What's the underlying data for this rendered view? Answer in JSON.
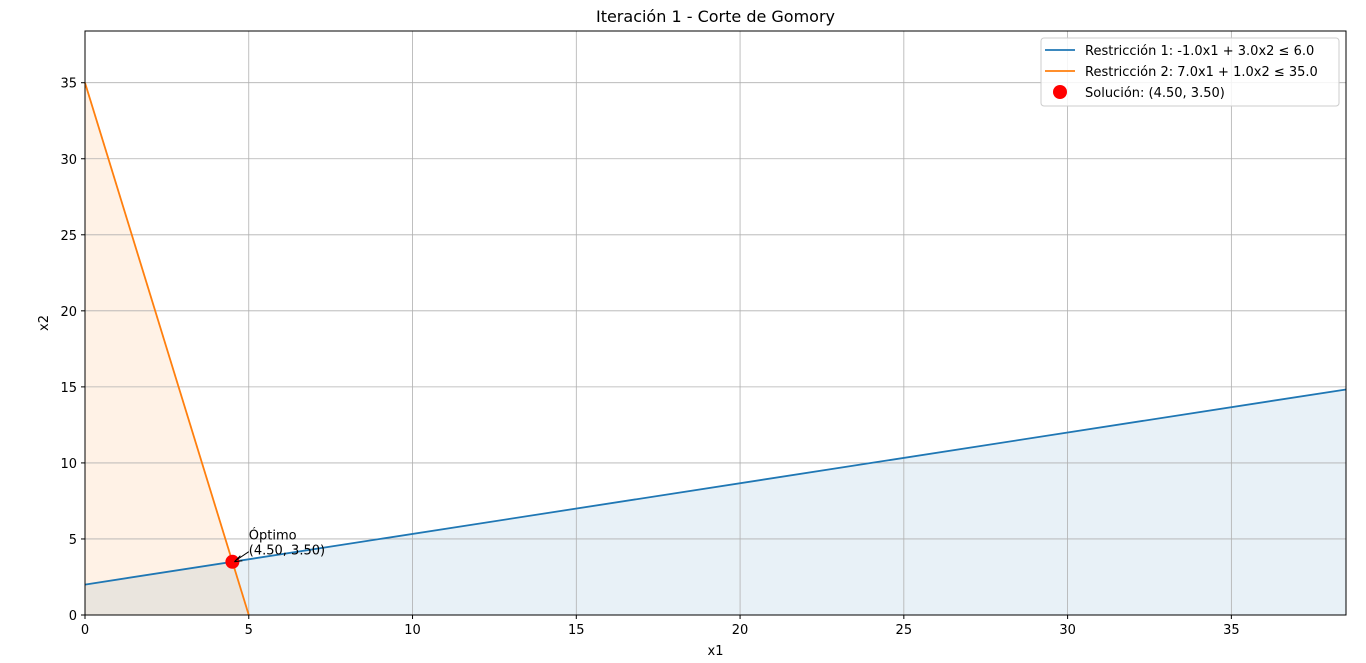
{
  "chart_data": {
    "type": "line",
    "title": "Iteración 1 - Corte de Gomory",
    "xlabel": "x1",
    "ylabel": "x2",
    "xlim": [
      0,
      38.5
    ],
    "ylim": [
      0,
      38.4
    ],
    "xticks": [
      0,
      5,
      10,
      15,
      20,
      25,
      30,
      35
    ],
    "yticks": [
      0,
      5,
      10,
      15,
      20,
      25,
      30,
      35
    ],
    "grid": true,
    "legend_position": "top-right",
    "series": [
      {
        "name": "Restricción 1: -1.0x1 + 3.0x2 ≤ 6.0",
        "kind": "line",
        "color": "#1f77b4",
        "x": [
          0,
          38.5
        ],
        "y": [
          2.0,
          14.83
        ],
        "fill_below": true,
        "fill_color": "#1f77b4"
      },
      {
        "name": "Restricción 2: 7.0x1 + 1.0x2 ≤ 35.0",
        "kind": "line",
        "color": "#ff7f0e",
        "x": [
          0,
          5
        ],
        "y": [
          35.0,
          0.0
        ],
        "fill_below": true,
        "fill_color": "#ff7f0e"
      },
      {
        "name": "Solución: (4.50, 3.50)",
        "kind": "point",
        "color": "#ff0000",
        "x": [
          4.5
        ],
        "y": [
          3.5
        ]
      }
    ],
    "annotation": {
      "lines": [
        "Óptimo",
        "(4.50, 3.50)"
      ],
      "point": [
        4.5,
        3.5
      ],
      "text_at": [
        5.0,
        3.9
      ]
    }
  }
}
